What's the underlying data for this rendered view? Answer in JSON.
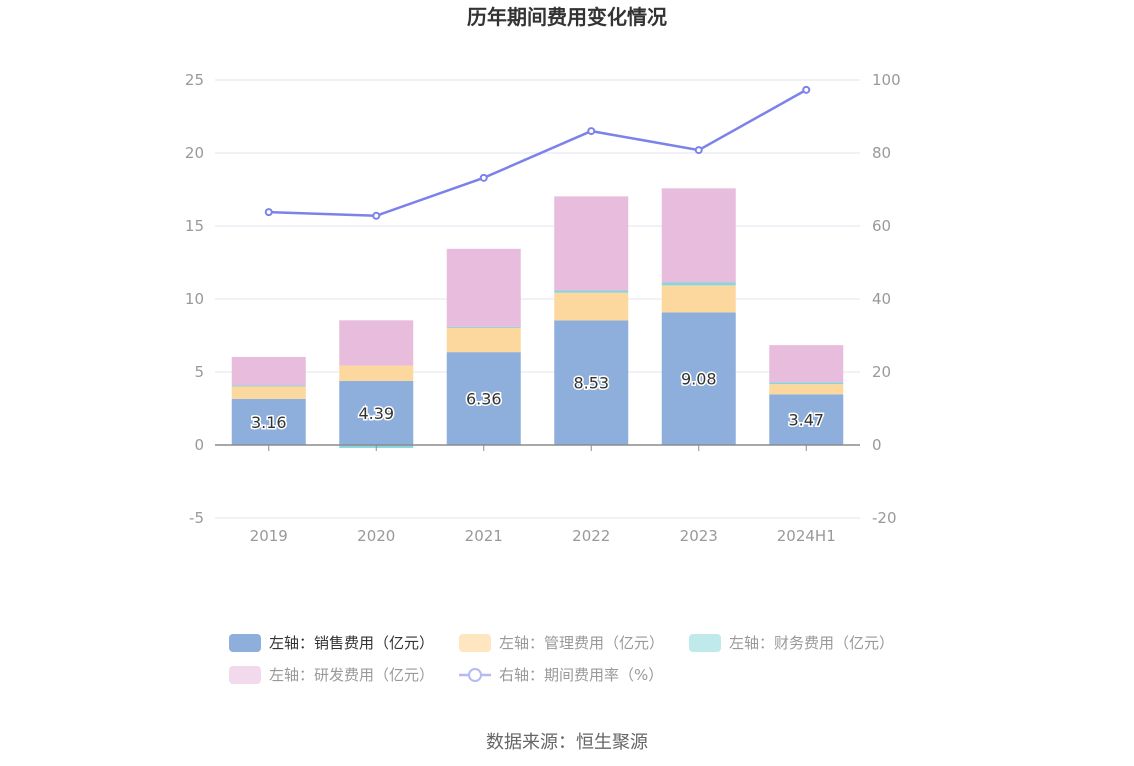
{
  "chart_data": {
    "type": "bar",
    "title": "历年期间费用变化情况",
    "categories": [
      "2019",
      "2020",
      "2021",
      "2022",
      "2023",
      "2024H1"
    ],
    "series": [
      {
        "name": "左轴：销售费用（亿元）",
        "axis": "left",
        "color": "#8eaedb",
        "stack": true,
        "values": [
          3.16,
          4.39,
          6.36,
          8.53,
          9.08,
          3.47
        ],
        "labels": [
          "3.16",
          "4.39",
          "6.36",
          "8.53",
          "9.08",
          "3.47"
        ]
      },
      {
        "name": "左轴：管理费用（亿元）",
        "axis": "left",
        "color": "#fdd89e",
        "stack": true,
        "values": [
          0.9,
          1.05,
          1.7,
          1.9,
          1.85,
          0.7
        ]
      },
      {
        "name": "左轴：财务费用（亿元）",
        "axis": "left",
        "color": "#88d6db",
        "stack": true,
        "values": [
          0.02,
          -0.2,
          0.03,
          0.15,
          0.2,
          0.12
        ]
      },
      {
        "name": "左轴：研发费用（亿元）",
        "axis": "left",
        "color": "#e8bcdc",
        "stack": true,
        "values": [
          1.95,
          3.1,
          5.35,
          6.45,
          6.45,
          2.55
        ]
      },
      {
        "name": "右轴：期间费用率（%）",
        "axis": "right",
        "type": "line",
        "color": "#7b82ea",
        "values": [
          63.8,
          62.8,
          73.2,
          86.0,
          80.8,
          97.3
        ]
      }
    ],
    "y_left": {
      "min": -5,
      "max": 25,
      "ticks": [
        -5,
        0,
        5,
        10,
        15,
        20,
        25
      ]
    },
    "y_right": {
      "min": -20,
      "max": 100,
      "ticks": [
        -20,
        0,
        20,
        40,
        60,
        80,
        100
      ]
    },
    "grid": true,
    "legend_position": "bottom"
  },
  "source_text": "数据来源：恒生聚源"
}
